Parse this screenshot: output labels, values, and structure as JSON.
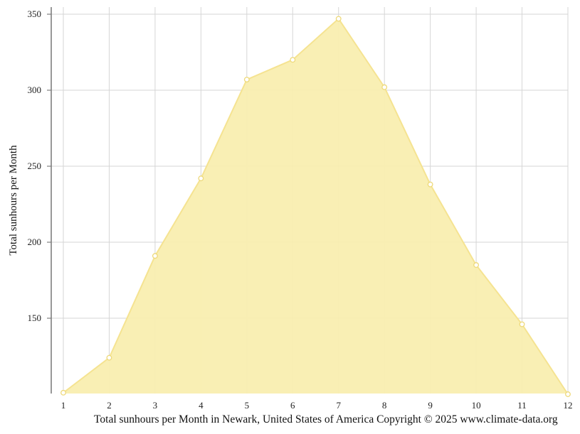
{
  "caption": "Total sunhours per Month in Newark, United States of America Copyright © 2025 www.climate-data.org",
  "chart_data": {
    "type": "area",
    "title": "",
    "xlabel": "",
    "ylabel": "Total sunhours per Month",
    "x": [
      1,
      2,
      3,
      4,
      5,
      6,
      7,
      8,
      9,
      10,
      11,
      12
    ],
    "series": [
      {
        "values": [
          101,
          124,
          191,
          242,
          307,
          320,
          347,
          302,
          238,
          185,
          146,
          100
        ]
      }
    ],
    "xticks": [
      "1",
      "2",
      "3",
      "4",
      "5",
      "6",
      "7",
      "8",
      "9",
      "10",
      "11",
      "12"
    ],
    "yticks": [
      150,
      200,
      250,
      300,
      350
    ],
    "ylim": [
      100,
      355
    ],
    "xlim": [
      1,
      12
    ],
    "grid": true,
    "fill_color": "#f9eeb0",
    "line_color": "#f5e391",
    "grid_color": "#d6d6d6"
  }
}
